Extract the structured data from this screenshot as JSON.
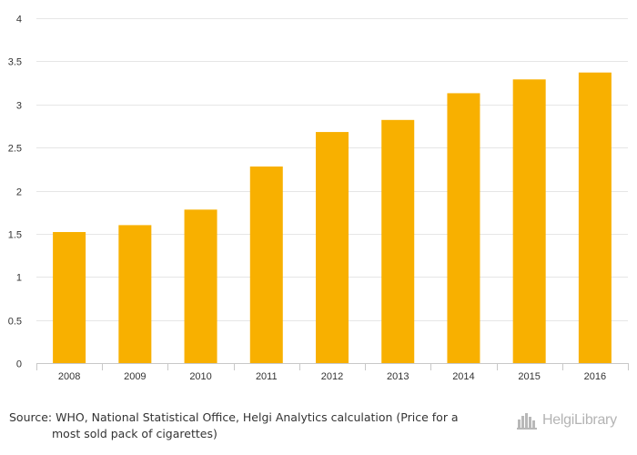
{
  "chart_data": {
    "type": "bar",
    "categories": [
      "2008",
      "2009",
      "2010",
      "2011",
      "2012",
      "2013",
      "2014",
      "2015",
      "2016"
    ],
    "values": [
      1.52,
      1.6,
      1.78,
      2.28,
      2.68,
      2.82,
      3.13,
      3.29,
      3.37
    ],
    "ylim": [
      0,
      4
    ],
    "yticks": [
      "0",
      "0.5",
      "1",
      "1.5",
      "2",
      "2.5",
      "3",
      "3.5",
      "4"
    ],
    "grid": true,
    "bar_color": "#f8b000",
    "grid_color": "#e6e6e6"
  },
  "footer": {
    "source_line1": "Source: WHO, National Statistical Office, Helgi Analytics calculation (Price for a",
    "source_line2": "most sold pack of cigarettes)",
    "brand": "HelgiLibrary",
    "brand_icon": "city-skyline-icon"
  }
}
